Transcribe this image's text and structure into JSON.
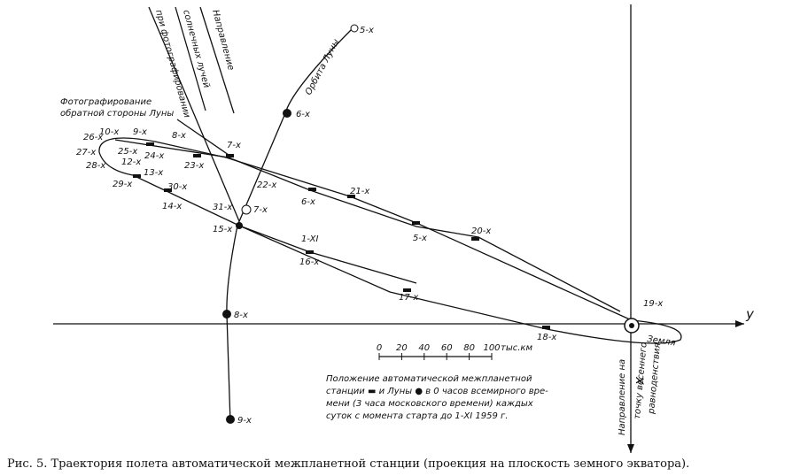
{
  "sun_direction": [
    "Направление",
    "солнечных лучей",
    "при фотографировании"
  ],
  "photo_label": [
    "Фотографирование",
    "обратной стороны Луны"
  ],
  "moon_orbit": {
    "label": "Орбита Луны",
    "positions": [
      "5-х",
      "6-х",
      "7-х",
      "8-х",
      "9-х"
    ]
  },
  "station_positions": [
    "26-х",
    "10-х",
    "9-х",
    "8-х",
    "7-х",
    "27-х",
    "25-х",
    "24-х",
    "23-х",
    "28-х",
    "12-х",
    "13-х",
    "29-х",
    "30-х",
    "14-х",
    "22-х",
    "21-х",
    "6-х",
    "31-х",
    "15-х",
    "5-х",
    "20-х",
    "1-XI",
    "16-х",
    "17-х",
    "18-х",
    "19-х"
  ],
  "axes": {
    "y": "y",
    "x": "x"
  },
  "earth": "Земля",
  "scale": {
    "ticks": [
      0,
      20,
      40,
      60,
      80,
      100
    ],
    "unit": "тыс.км"
  },
  "equinox_label": [
    "Направление на",
    "точку весеннего",
    "равноденствия"
  ],
  "note": [
    "Положение автоматической межпланетной",
    "станции ▬ и Луны ● в 0 часов всемирного вре-",
    "мени (3 часа московского времени) каждых",
    "суток с момента старта до 1-XI 1959 г."
  ],
  "caption": "Рис. 5. Траектория полета автоматической межпланетной станции (проекция на плоскость земного экватора)."
}
